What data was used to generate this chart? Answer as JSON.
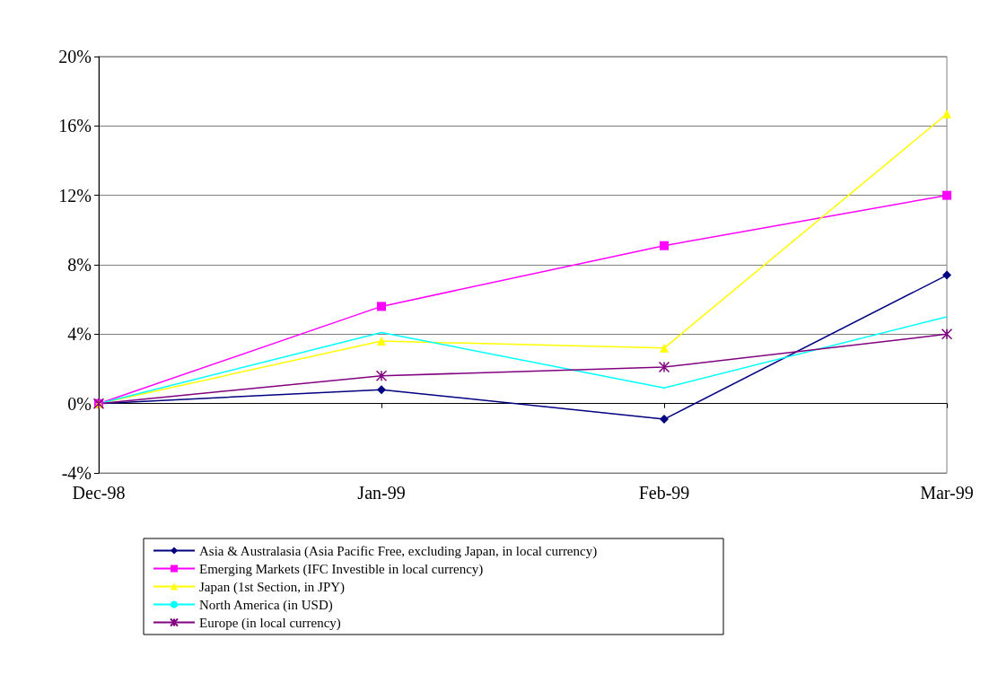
{
  "chart_data": {
    "type": "line",
    "categories": [
      "Dec-98",
      "Jan-99",
      "Feb-99",
      "Mar-99"
    ],
    "ylim": [
      -4,
      20
    ],
    "yticks": [
      {
        "value": -4,
        "label": "-4%"
      },
      {
        "value": 0,
        "label": "0%"
      },
      {
        "value": 4,
        "label": "4%"
      },
      {
        "value": 8,
        "label": "8%"
      },
      {
        "value": 12,
        "label": "12%"
      },
      {
        "value": 16,
        "label": "16%"
      },
      {
        "value": 20,
        "label": "20%"
      }
    ],
    "grid": "y",
    "legend": "bottom",
    "line_style": "solid",
    "series": [
      {
        "name": "Asia & Australasia (Asia Pacific Free, excluding Japan, in local currency)",
        "color": "#000080",
        "marker": "diamond",
        "values": [
          0,
          0.8,
          -0.9,
          7.4
        ]
      },
      {
        "name": "Emerging Markets (IFC Investible in local currency)",
        "color": "#ff00ff",
        "marker": "square",
        "values": [
          0,
          5.6,
          9.1,
          12
        ]
      },
      {
        "name": "Japan (1st Section, in JPY)",
        "color": "#ffff00",
        "marker": "triangle",
        "values": [
          0,
          3.6,
          3.2,
          16.7
        ]
      },
      {
        "name": "North America (in USD)",
        "color": "#00ffff",
        "marker": "none",
        "values": [
          0,
          4.1,
          0.9,
          5
        ]
      },
      {
        "name": "Europe (in local currency)",
        "color": "#800080",
        "marker": "cross",
        "values": [
          0,
          1.6,
          2.1,
          4
        ]
      }
    ]
  }
}
